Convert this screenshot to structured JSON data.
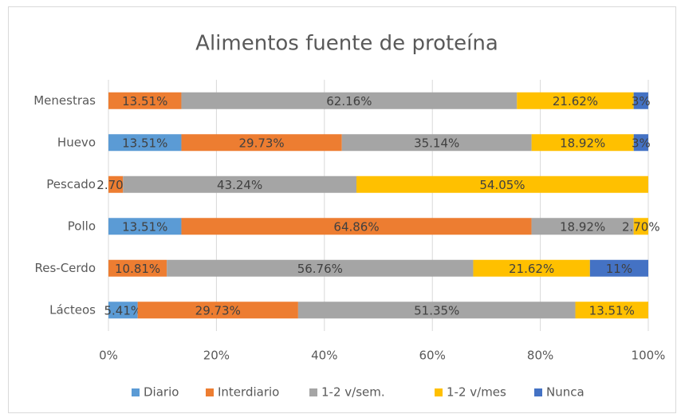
{
  "chart_data": {
    "type": "stacked_bar_horizontal",
    "title": "Alimentos fuente de proteína",
    "categories": [
      "Menestras",
      "Huevo",
      "Pescado",
      "Pollo",
      "Res-Cerdo",
      "Lácteos"
    ],
    "series": [
      {
        "name": "Diario",
        "color": "#5b9bd5",
        "values": [
          null,
          13.51,
          null,
          13.51,
          null,
          5.41
        ],
        "value_labels": [
          null,
          "13.51%",
          null,
          "13.51%",
          null,
          "5.41%"
        ]
      },
      {
        "name": "Interdiario",
        "color": "#ed7d31",
        "values": [
          13.51,
          29.73,
          2.7,
          64.86,
          10.81,
          29.73
        ],
        "value_labels": [
          "13.51%",
          "29.73%",
          "2.70%",
          "64.86%",
          "10.81%",
          "29.73%"
        ]
      },
      {
        "name": "1-2 v/sem.",
        "color": "#a5a5a5",
        "values": [
          62.16,
          35.14,
          43.24,
          18.92,
          56.76,
          51.35
        ],
        "value_labels": [
          "62.16%",
          "35.14%",
          "43.24%",
          "18.92%",
          "56.76%",
          "51.35%"
        ]
      },
      {
        "name": "1-2 v/mes",
        "color": "#ffc000",
        "values": [
          21.62,
          18.92,
          54.05,
          2.7,
          21.62,
          13.51
        ],
        "value_labels": [
          "21.62%",
          "18.92%",
          "54.05%",
          "2.70%",
          "21.62%",
          "13.51%"
        ]
      },
      {
        "name": "Nunca",
        "color": "#4472c4",
        "values": [
          2.7,
          2.7,
          null,
          null,
          10.81,
          null
        ],
        "value_labels": [
          "3%",
          "3%",
          null,
          null,
          "11%",
          null
        ]
      }
    ],
    "xlim": [
      0,
      100
    ],
    "xticks": [
      {
        "value": 0,
        "label": "0%"
      },
      {
        "value": 20,
        "label": "20%"
      },
      {
        "value": 40,
        "label": "40%"
      },
      {
        "value": 60,
        "label": "60%"
      },
      {
        "value": 80,
        "label": "80%"
      },
      {
        "value": 100,
        "label": "100%"
      }
    ],
    "grid": true,
    "legend": "bottom"
  }
}
